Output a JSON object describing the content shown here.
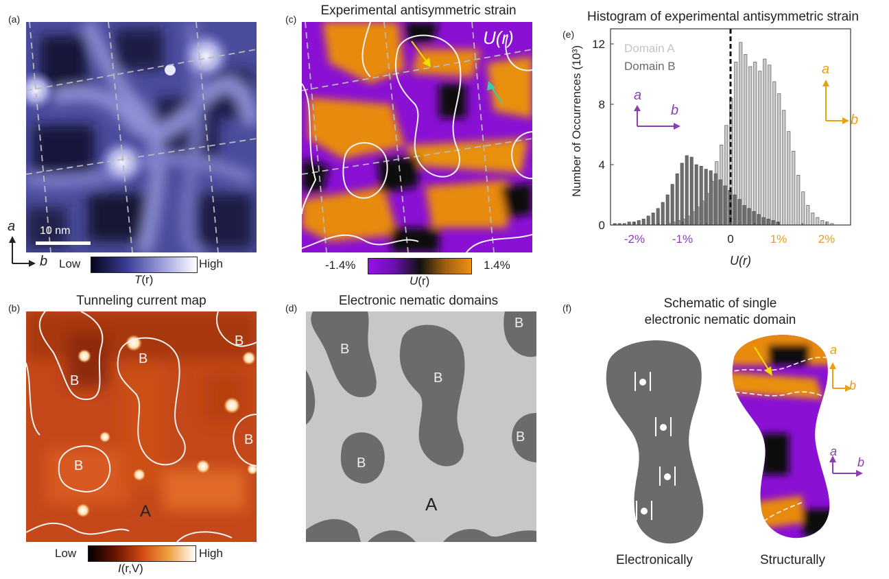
{
  "panels": {
    "a": {
      "label": "(a)",
      "scalebar": "10 nm",
      "axis_a": "a",
      "axis_b": "b",
      "cbar_low": "Low",
      "cbar_high": "High",
      "cbar_label_var": "T",
      "cbar_label_arg": "(r)"
    },
    "b": {
      "label": "(b)",
      "title": "Tunneling current map",
      "domain_labels": [
        "B",
        "B",
        "B",
        "B",
        "B",
        "A"
      ],
      "cbar_low": "Low",
      "cbar_high": "High",
      "cbar_label_var": "I",
      "cbar_label_arg": "(r,V)"
    },
    "c": {
      "label": "(c)",
      "title": "Experimental antisymmetric strain",
      "corner_label": "U(r)",
      "cbar_min": "-1.4%",
      "cbar_max": "1.4%",
      "cbar_label_var": "U",
      "cbar_label_arg": "(r)"
    },
    "d": {
      "label": "(d)",
      "title": "Electronic nematic domains",
      "domain_labels": [
        "B",
        "B",
        "B",
        "B",
        "B",
        "A"
      ]
    },
    "e": {
      "label": "(e)",
      "title": "Histogram of experimental antisymmetric strain"
    },
    "f": {
      "label": "(f)",
      "title_line1": "Schematic of single",
      "title_line2": "electronic nematic domain",
      "caption_left": "Electronically",
      "caption_right": "Structurally",
      "axis_a": "a",
      "axis_b": "b"
    }
  },
  "colors": {
    "purple": "#8a1fd0",
    "orange": "#e8960c",
    "purple_arrow": "#8a3fb0",
    "orange_arrow": "#e8a010",
    "domain_dark": "#6b6b6b",
    "domain_light": "#c8c8c8",
    "hist_a": "#c9c9c9",
    "hist_b": "#6e6e6e"
  },
  "chart_data": {
    "type": "bar",
    "title": "Histogram of experimental antisymmetric strain",
    "xlabel": "U(r)",
    "ylabel": "Number of Occurrences (10³)",
    "xlim": [
      -2.5,
      2.5
    ],
    "ylim": [
      0,
      13
    ],
    "xticks": [
      "-2%",
      "-1%",
      "0",
      "1%",
      "2%"
    ],
    "xtick_values": [
      -2,
      -1,
      0,
      1,
      2
    ],
    "yticks": [
      0,
      4,
      8,
      12
    ],
    "legend": "top-left",
    "series": [
      {
        "name": "Domain A",
        "x": [
          -1.3,
          -1.2,
          -1.1,
          -1.0,
          -0.9,
          -0.8,
          -0.7,
          -0.6,
          -0.5,
          -0.4,
          -0.3,
          -0.2,
          -0.1,
          0.0,
          0.1,
          0.2,
          0.3,
          0.4,
          0.5,
          0.6,
          0.7,
          0.8,
          0.9,
          1.0,
          1.1,
          1.2,
          1.3,
          1.4,
          1.5,
          1.6,
          1.7,
          1.8,
          1.9,
          2.0,
          2.1
        ],
        "values": [
          0.1,
          0.2,
          0.3,
          0.4,
          0.6,
          0.9,
          1.2,
          1.6,
          2.1,
          2.9,
          4.2,
          5.3,
          6.6,
          8.4,
          10.8,
          12.1,
          11.3,
          10.5,
          10.8,
          10.2,
          11.0,
          10.6,
          9.5,
          8.7,
          7.6,
          6.2,
          4.9,
          3.3,
          2.2,
          1.3,
          0.8,
          0.5,
          0.3,
          0.2,
          0.1
        ]
      },
      {
        "name": "Domain B",
        "x": [
          -2.4,
          -2.3,
          -2.2,
          -2.1,
          -2.0,
          -1.9,
          -1.8,
          -1.7,
          -1.6,
          -1.5,
          -1.4,
          -1.3,
          -1.2,
          -1.1,
          -1.0,
          -0.9,
          -0.8,
          -0.7,
          -0.6,
          -0.5,
          -0.4,
          -0.3,
          -0.2,
          -0.1,
          0.0,
          0.1,
          0.2,
          0.3,
          0.4,
          0.5,
          0.6,
          0.7,
          0.8,
          0.9,
          1.0
        ],
        "values": [
          0.1,
          0.1,
          0.1,
          0.2,
          0.2,
          0.3,
          0.4,
          0.6,
          0.8,
          1.1,
          1.5,
          2.0,
          2.7,
          3.4,
          4.1,
          4.6,
          4.5,
          4.0,
          3.9,
          3.7,
          3.6,
          3.4,
          3.0,
          2.6,
          2.3,
          2.0,
          1.7,
          1.3,
          1.1,
          0.9,
          0.7,
          0.5,
          0.4,
          0.3,
          0.2
        ]
      }
    ]
  }
}
